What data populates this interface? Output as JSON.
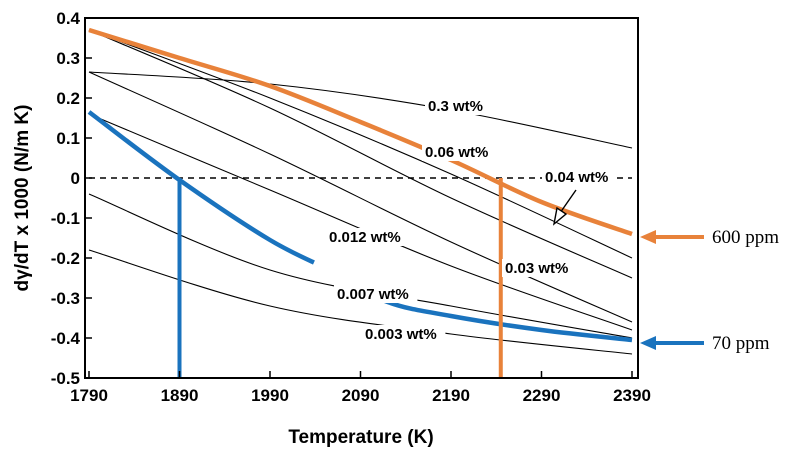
{
  "chart_data": {
    "type": "line",
    "title": "",
    "xlabel": "Temperature (K)",
    "ylabel": "dγ/dT x 1000 (N/m K)",
    "xlim": [
      1790,
      2400
    ],
    "ylim": [
      -0.5,
      0.4
    ],
    "xticks": [
      1790,
      1890,
      1990,
      2090,
      2190,
      2290,
      2390
    ],
    "yticks": [
      0.4,
      0.3,
      0.2,
      0.1,
      0,
      -0.1,
      -0.2,
      -0.3,
      -0.4,
      -0.5
    ],
    "xtick_labels": [
      "1790",
      "1890",
      "1990",
      "2090",
      "2190",
      "2290",
      "2390"
    ],
    "ytick_labels": [
      "0.4",
      "0.3",
      "0.2",
      "0.1",
      "0",
      "-0.1",
      "-0.2",
      "-0.3",
      "-0.4",
      "-0.5"
    ],
    "grid": false,
    "colors": {
      "orange": "#e8823a",
      "blue": "#1a73be",
      "thin": "#000000"
    },
    "series": [
      {
        "name": "0.3 wt%",
        "style": "thin",
        "x": [
          1790,
          1990,
          2190,
          2390
        ],
        "y": [
          0.265,
          0.235,
          0.17,
          0.075
        ]
      },
      {
        "name": "0.06 wt%",
        "style": "thin",
        "x": [
          1790,
          1990,
          2190,
          2390
        ],
        "y": [
          0.37,
          0.2,
          0.01,
          -0.2
        ]
      },
      {
        "name": "0.04 wt%",
        "style": "thin",
        "x": [
          1790,
          1990,
          2190,
          2390
        ],
        "y": [
          0.37,
          0.175,
          -0.05,
          -0.25
        ]
      },
      {
        "name": "0.03 wt%",
        "style": "thin",
        "x": [
          1790,
          1990,
          2190,
          2390
        ],
        "y": [
          0.265,
          0.06,
          -0.16,
          -0.36
        ]
      },
      {
        "name": "0.012 wt%",
        "style": "thin",
        "x": [
          1790,
          1990,
          2190,
          2390
        ],
        "y": [
          0.16,
          -0.03,
          -0.22,
          -0.38
        ]
      },
      {
        "name": "0.007 wt%",
        "style": "thin",
        "x": [
          1790,
          1990,
          2190,
          2390
        ],
        "y": [
          -0.04,
          -0.23,
          -0.32,
          -0.4
        ]
      },
      {
        "name": "0.003 wt%",
        "style": "thin",
        "x": [
          1790,
          1990,
          2190,
          2390
        ],
        "y": [
          -0.18,
          -0.32,
          -0.39,
          -0.44
        ]
      },
      {
        "name": "600 ppm",
        "style": "orange",
        "x": [
          1790,
          1890,
          1990,
          2090,
          2190,
          2290,
          2390
        ],
        "y": [
          0.37,
          0.3,
          0.23,
          0.14,
          0.045,
          -0.06,
          -0.14
        ]
      },
      {
        "name": "70 ppm",
        "style": "blue",
        "x": [
          1790,
          1890,
          1990,
          2060,
          2120,
          2190,
          2290,
          2390
        ],
        "y": [
          0.165,
          -0.005,
          -0.155,
          -0.235,
          -0.31,
          -0.345,
          -0.38,
          -0.405
        ]
      }
    ],
    "blue_gap": [
      2060,
      2120
    ],
    "verticals": [
      {
        "color": "blue",
        "x": 1890,
        "y_from": 0,
        "y_to": -0.5
      },
      {
        "color": "orange",
        "x": 2245,
        "y_from": 0,
        "y_to": -0.5
      }
    ],
    "zero_line": {
      "y": 0,
      "style": "dashed"
    },
    "annotations": [
      {
        "id": "lbl_03",
        "text": "0.3 wt%"
      },
      {
        "id": "lbl_006",
        "text": "0.06 wt%"
      },
      {
        "id": "lbl_004",
        "text": "0.04 wt%"
      },
      {
        "id": "lbl_0012",
        "text": "0.012 wt%"
      },
      {
        "id": "lbl_003",
        "text": "0.03 wt%"
      },
      {
        "id": "lbl_0007",
        "text": "0.007 wt%"
      },
      {
        "id": "lbl_0003",
        "text": "0.003 wt%"
      }
    ],
    "side_labels": [
      {
        "text": "600 ppm",
        "color": "orange"
      },
      {
        "text": "70 ppm",
        "color": "blue"
      }
    ]
  }
}
